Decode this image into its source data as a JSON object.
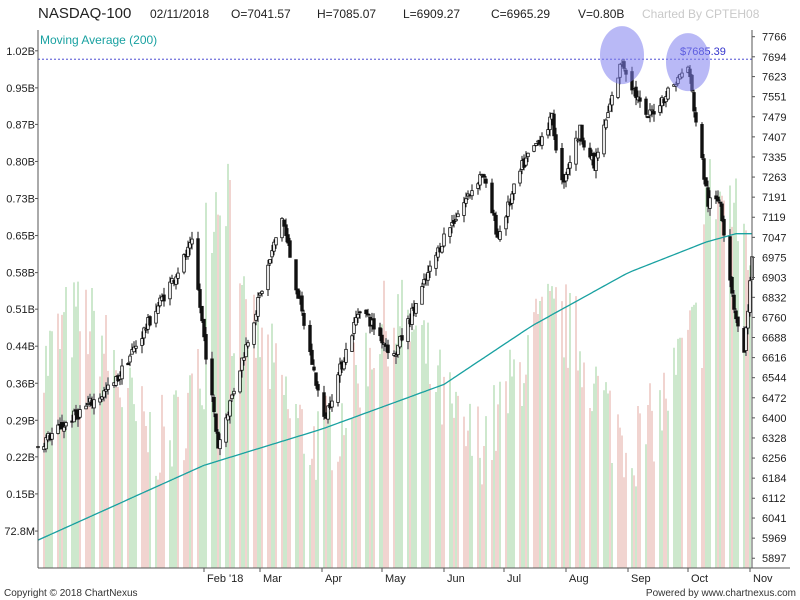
{
  "header": {
    "symbol": "NASDAQ-100",
    "date": "02/11/2018",
    "open": "O=7041.57",
    "high": "H=7085.07",
    "low": "L=6909.27",
    "close": "C=6965.29",
    "volume": "V=0.80B",
    "credit": "Charted By CPTEH08"
  },
  "footer": {
    "left": "Copyright © 2018 ChartNexus",
    "right": "Powered by www.chartnexus.com"
  },
  "chart_data": {
    "type": "candlestick",
    "indicator_label": "Moving Average (200)",
    "reference_line": {
      "label": "$7685.39",
      "value": 7685.39
    },
    "price_axis": {
      "ticks": [
        5897,
        5969,
        6041,
        6112,
        6184,
        6256,
        6328,
        6400,
        6472,
        6544,
        6616,
        6688,
        6760,
        6832,
        6903,
        6975,
        7047,
        7119,
        7191,
        7263,
        7335,
        7407,
        7479,
        7551,
        7623,
        7694,
        7766
      ],
      "range": [
        5862,
        7790
      ]
    },
    "volume_axis": {
      "ticks": [
        "72.8M",
        "0.15B",
        "0.22B",
        "0.29B",
        "0.36B",
        "0.44B",
        "0.51B",
        "0.58B",
        "0.65B",
        "0.73B",
        "0.80B",
        "0.87B",
        "0.95B",
        "1.02B"
      ],
      "range": [
        0.0,
        1.06
      ]
    },
    "x_axis": {
      "months": [
        "Feb '18",
        "Mar",
        "Apr",
        "May",
        "Jun",
        "Jul",
        "Aug",
        "Sep",
        "Oct",
        "Nov"
      ]
    },
    "highlight_markers": [
      {
        "date": "2018-08-29",
        "price": 7700
      },
      {
        "date": "2018-10-01",
        "price": 7675
      }
    ],
    "trend_anchors": [
      [
        "2017-11-10",
        6300
      ],
      [
        "2017-12-18",
        6520
      ],
      [
        "2018-01-26",
        7020
      ],
      [
        "2018-02-08",
        6300
      ],
      [
        "2018-03-12",
        7120
      ],
      [
        "2018-04-02",
        6390
      ],
      [
        "2018-04-20",
        6800
      ],
      [
        "2018-05-07",
        6620
      ],
      [
        "2018-06-01",
        7050
      ],
      [
        "2018-06-20",
        7280
      ],
      [
        "2018-06-28",
        7050
      ],
      [
        "2018-07-10",
        7300
      ],
      [
        "2018-07-25",
        7470
      ],
      [
        "2018-07-30",
        7240
      ],
      [
        "2018-08-08",
        7430
      ],
      [
        "2018-08-15",
        7300
      ],
      [
        "2018-08-29",
        7680
      ],
      [
        "2018-09-10",
        7470
      ],
      [
        "2018-09-20",
        7560
      ],
      [
        "2018-10-01",
        7660
      ],
      [
        "2018-10-11",
        7170
      ],
      [
        "2018-10-17",
        7180
      ],
      [
        "2018-10-24",
        6800
      ],
      [
        "2018-10-29",
        6630
      ],
      [
        "2018-11-02",
        6965
      ]
    ],
    "ma200_anchors": [
      [
        "2017-11-10",
        5962
      ],
      [
        "2018-02-01",
        6230
      ],
      [
        "2018-04-01",
        6360
      ],
      [
        "2018-06-01",
        6520
      ],
      [
        "2018-07-15",
        6730
      ],
      [
        "2018-09-01",
        6920
      ],
      [
        "2018-10-10",
        7030
      ],
      [
        "2018-10-25",
        7060
      ],
      [
        "2018-11-02",
        7060
      ]
    ],
    "series_start": "2017-11-10",
    "series_end": "2018-11-02",
    "colors": {
      "up_candle": "#111111",
      "ma_line": "#19a1a1",
      "volume_up": "#9bd09b",
      "volume_down": "#e3aaa0",
      "reference_line": "#3333cc",
      "marker_fill": "#8080ee",
      "axis_text": "#222222",
      "gridline": "#d8d8d8"
    }
  }
}
